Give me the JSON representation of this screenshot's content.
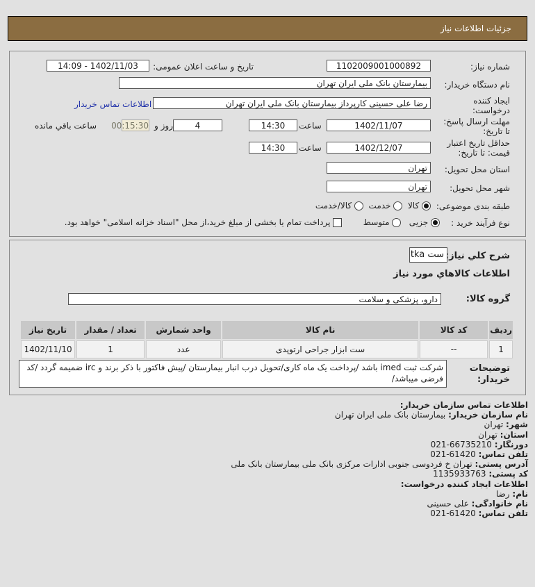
{
  "header": {
    "title": "جزئیات اطلاعات نیاز"
  },
  "form": {
    "need_number_label": "شماره نیاز:",
    "need_number": "1102009001000892",
    "announce_label": "تاریخ و ساعت اعلان عمومی:",
    "announce_value": "1402/11/03 - 14:09",
    "buyer_label": "نام دستگاه خریدار:",
    "buyer_value": "بیمارستان بانک ملی ایران تهران",
    "creator_label_1": "ایجاد کننده",
    "creator_label_2": "درخواست:",
    "creator_value": "رضا علی حسینی کارپرداز بیمارستان بانک ملی ایران تهران",
    "contact_link": "اطلاعات تماس خریدار",
    "deadline_label_1": "مهلت ارسال پاسخ:",
    "deadline_label_2": "تا تاریخ:",
    "deadline_date": "1402/11/07",
    "time_label": "ساعت",
    "deadline_time": "14:30",
    "days_value": "4",
    "days_label": "روز و",
    "remaining_value": "00:15:30",
    "remaining_label": "ساعت باقي مانده",
    "validity_label_1": "حداقل تاریخ اعتبار",
    "validity_label_2": "قیمت: تا تاریخ:",
    "validity_date": "1402/12/07",
    "validity_time": "14:30",
    "province_label": "استان محل تحویل:",
    "province_value": "تهران",
    "city_label": "شهر محل تحویل:",
    "city_value": "تهران",
    "category_label": "طبقه بندی موضوعی:",
    "category_options": [
      "کالا",
      "خدمت",
      "کالا/خدمت"
    ],
    "category_selected": "کالا",
    "process_label": "نوع فرآیند خرید :",
    "process_options": [
      "جزیی",
      "متوسط"
    ],
    "process_selected": "جزیی",
    "payment_note": "پرداخت تمام یا بخشی از مبلغ خرید،از محل \"اسناد خزانه اسلامی\" خواهد بود."
  },
  "details": {
    "summary_label": "شرح كلي نياز:",
    "summary_value": "ست tka",
    "goods_heading": "اطلاعات كالاهاي مورد نياز",
    "group_label": "گروه کالا:",
    "group_value": "دارو، پزشکی و سلامت",
    "table": {
      "headers": [
        "ردیف",
        "کد کالا",
        "نام کالا",
        "واحد شمارش",
        "تعداد / مقدار",
        "تاریخ نیاز"
      ],
      "rows": [
        [
          "1",
          "--",
          "ست ابزار جراحی ارتوپدی",
          "عدد",
          "1",
          "1402/11/10"
        ]
      ]
    },
    "desc_label_1": "توضیحات",
    "desc_label_2": "خریدار:",
    "desc_value": "شرکت ثبت imed باشد /پرداخت یک ماه کاری/تحویل درب انبار بیمارستان /پیش فاکتور با ذکر برند و irc ضمیمه گردد /کد فرضی میباشد/"
  },
  "contact": {
    "heading": "اطلاعات تماس سازمان خریدار:",
    "org_label": "نام سازمان خریدار:",
    "org_value": "بیمارستان بانک ملی ایران تهران",
    "city_label": "شهر:",
    "city_value": "تهران",
    "province_label": "استان:",
    "province_value": "تهران",
    "fax_label": "دورنگار:",
    "fax_value": "66735210-021",
    "phone_label": "تلفن تماس:",
    "phone_value": "61420-021",
    "address_label": "آدرس پستی:",
    "address_value": "تهران خ فردوسی جنوبی ادارات مرکزی بانک ملی بیمارستان بانک ملی",
    "postal_label": "کد پستی:",
    "postal_value": "1135933763",
    "creator_heading": "اطلاعات ایجاد کننده درخواست:",
    "name_label": "نام:",
    "name_value": "رضا",
    "family_label": "نام خانوادگی:",
    "family_value": "علی حسینی",
    "creator_phone_label": "تلفن تماس:",
    "creator_phone_value": "61420-021"
  }
}
